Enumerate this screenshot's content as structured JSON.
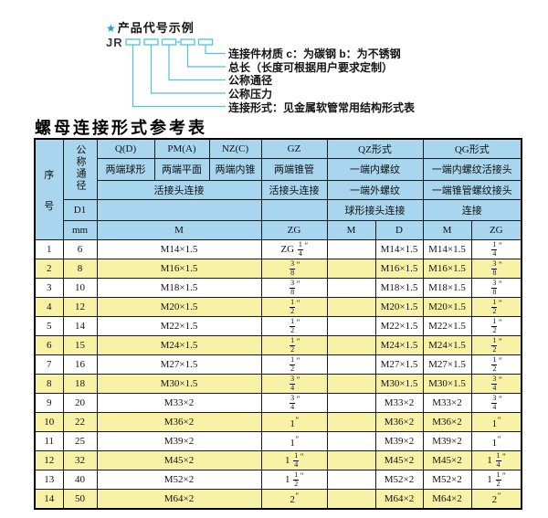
{
  "colors": {
    "header_bg": "#a8d6ee",
    "row_alt_bg": "#f8f2a6",
    "line_cyan": "#4fc1e5",
    "star_blue": "#2a9ad4"
  },
  "diagram": {
    "star": "★",
    "title": "产品代号示例",
    "code_prefix": "JR",
    "labels": [
      "连接件材质  c：为碳钢  b：为不锈钢",
      "总长（长度可根据用户要求定制）",
      "公称通径",
      "公称压力",
      "连接形式：见金属软管常用结构形式表"
    ]
  },
  "table": {
    "title": "螺母连接形式参考表",
    "header": {
      "xuhao_top": "序",
      "xuhao_bottom": "号",
      "nominal_diameter": "公称通径",
      "d1": "D1",
      "mm": "mm",
      "q_d": "Q(D)",
      "q_d_sub": "两端球形",
      "pm_a": "PM(A)",
      "pm_a_sub": "两端平面",
      "nz_c": "NZ(C)",
      "nz_c_sub": "两端内锥",
      "gz": "GZ",
      "gz_sub": "两端锥管",
      "gz_row3": "活接头连接",
      "gz_unit": "ZG",
      "union_row3": "活接头连接",
      "m_unit": "M",
      "qz": "QZ形式",
      "qz_sub1": "一端内螺纹",
      "qz_sub2": "一端外螺纹",
      "qz_sub3": "球形接头连接",
      "qz_col1": "M",
      "qz_col2": "D",
      "qg": "QG形式",
      "qg_sub1": "一端内螺纹活接头",
      "qg_sub2": "一端锥管螺纹接头",
      "qg_sub3": "连接",
      "qg_col1": "M",
      "qg_col2": "ZG"
    },
    "rows": [
      {
        "no": "1",
        "mm": "6",
        "m": "M14×1.5",
        "gz": "ZG 1/4\"",
        "qz_m": "",
        "qz_d": "M14×1.5",
        "qg_m": "M14×1.5",
        "qg_zg": "1/4\""
      },
      {
        "no": "2",
        "mm": "8",
        "m": "M16×1.5",
        "gz": "3/8\"",
        "qz_m": "",
        "qz_d": "M16×1.5",
        "qg_m": "M16×1.5",
        "qg_zg": "3/8\""
      },
      {
        "no": "3",
        "mm": "10",
        "m": "M18×1.5",
        "gz": "3/8\"",
        "qz_m": "",
        "qz_d": "M18×1.5",
        "qg_m": "M18×1.5",
        "qg_zg": "3/8\""
      },
      {
        "no": "4",
        "mm": "12",
        "m": "M20×1.5",
        "gz": "1/2\"",
        "qz_m": "",
        "qz_d": "M20×1.5",
        "qg_m": "M20×1.5",
        "qg_zg": "1/2\""
      },
      {
        "no": "5",
        "mm": "14",
        "m": "M22×1.5",
        "gz": "1/2\"",
        "qz_m": "",
        "qz_d": "M22×1.5",
        "qg_m": "M22×1.5",
        "qg_zg": "1/2\""
      },
      {
        "no": "6",
        "mm": "15",
        "m": "M24×1.5",
        "gz": "1/2\"",
        "qz_m": "",
        "qz_d": "M24×1.5",
        "qg_m": "M24×1.5",
        "qg_zg": "1/2\""
      },
      {
        "no": "7",
        "mm": "16",
        "m": "M27×1.5",
        "gz": "1/2\"",
        "qz_m": "",
        "qz_d": "M27×1.5",
        "qg_m": "M27×1.5",
        "qg_zg": "1/2\""
      },
      {
        "no": "8",
        "mm": "18",
        "m": "M30×1.5",
        "gz": "3/4\"",
        "qz_m": "",
        "qz_d": "M30×1.5",
        "qg_m": "M30×1.5",
        "qg_zg": "3/4\""
      },
      {
        "no": "9",
        "mm": "20",
        "m": "M33×2",
        "gz": "3/4\"",
        "qz_m": "",
        "qz_d": "M33×2",
        "qg_m": "M33×2",
        "qg_zg": "3/4\""
      },
      {
        "no": "10",
        "mm": "22",
        "m": "M36×2",
        "gz": "1\"",
        "qz_m": "",
        "qz_d": "M36×2",
        "qg_m": "M36×2",
        "qg_zg": "1\""
      },
      {
        "no": "11",
        "mm": "25",
        "m": "M39×2",
        "gz": "1\"",
        "qz_m": "",
        "qz_d": "M39×2",
        "qg_m": "M39×2",
        "qg_zg": "1\""
      },
      {
        "no": "12",
        "mm": "32",
        "m": "M45×2",
        "gz": "1 1/4\"",
        "qz_m": "",
        "qz_d": "M45×2",
        "qg_m": "M45×2",
        "qg_zg": "1 1/4\""
      },
      {
        "no": "13",
        "mm": "40",
        "m": "M52×2",
        "gz": "1 1/2\"",
        "qz_m": "",
        "qz_d": "M52×2",
        "qg_m": "M52×2",
        "qg_zg": "1 1/2\""
      },
      {
        "no": "14",
        "mm": "50",
        "m": "M64×2",
        "gz": "2\"",
        "qz_m": "",
        "qz_d": "M64×2",
        "qg_m": "M64×2",
        "qg_zg": "2\""
      }
    ]
  }
}
